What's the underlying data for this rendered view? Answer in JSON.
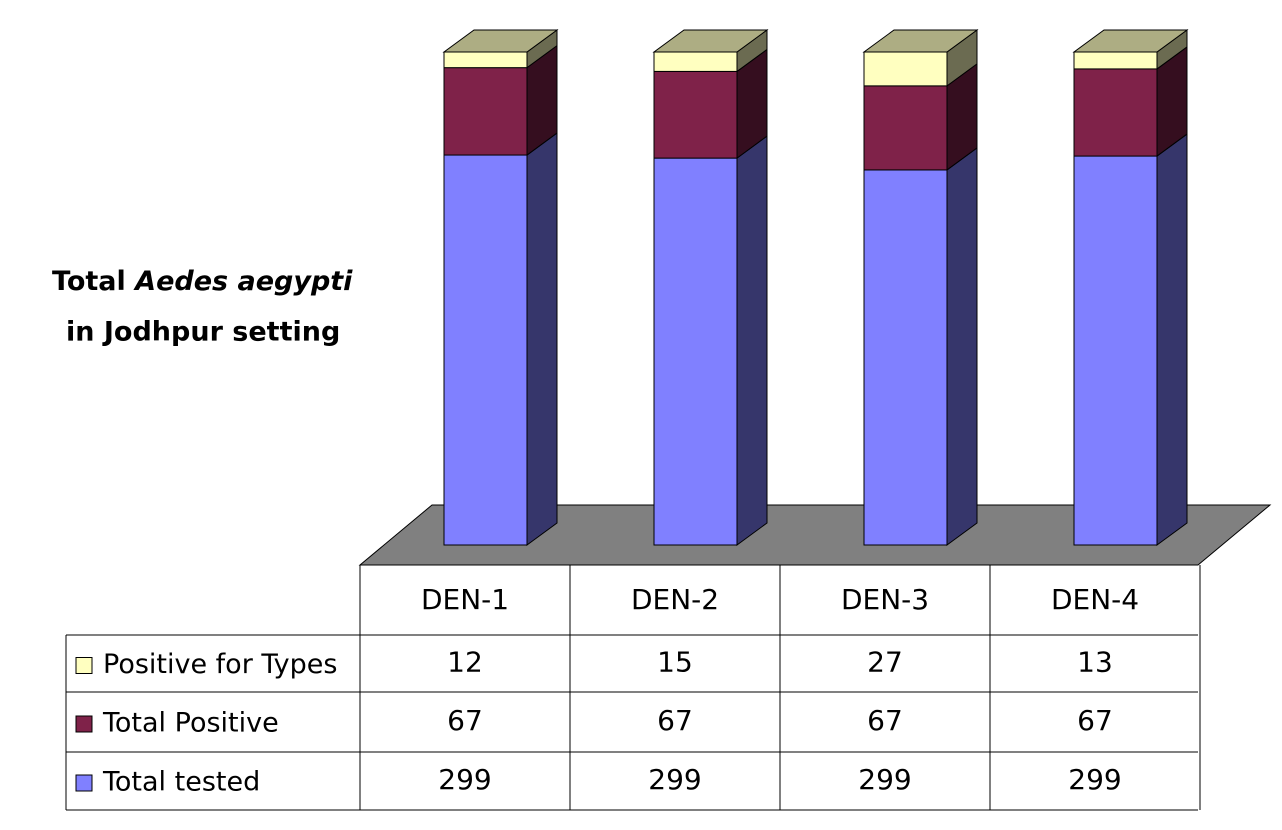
{
  "chart_data": {
    "type": "bar",
    "stack_mode": "percent",
    "title_parts": [
      "Total",
      "Aedes aegypti",
      "in Jodhpur setting"
    ],
    "categories": [
      "DEN-1",
      "DEN-2",
      "DEN-3",
      "DEN-4"
    ],
    "series": [
      {
        "name": "Total tested",
        "color": "#8080ff",
        "values": [
          299,
          299,
          299,
          299
        ]
      },
      {
        "name": "Total Positive",
        "color": "#7f2249",
        "values": [
          67,
          67,
          67,
          67
        ]
      },
      {
        "name": "Positive for Types",
        "color": "#ffffc0",
        "values": [
          12,
          15,
          27,
          13
        ]
      }
    ],
    "floor_color": "#808080"
  }
}
